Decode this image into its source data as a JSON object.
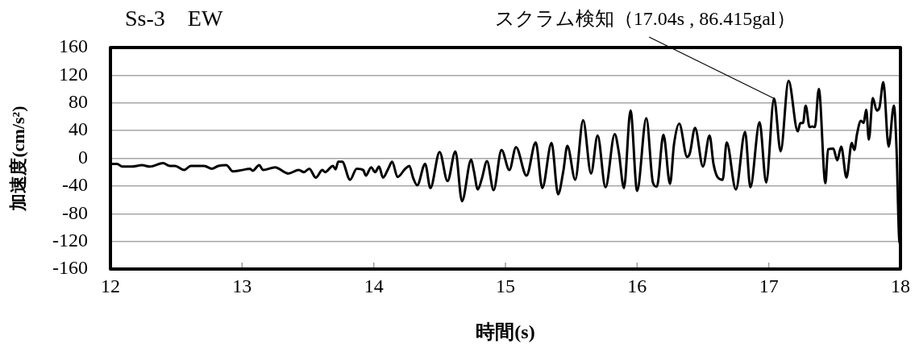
{
  "chart_data": {
    "type": "line",
    "title": "Ss-3　EW",
    "xlabel": "時間(s)",
    "ylabel": "加速度(cm/s²)",
    "x": [
      12.0,
      12.05,
      12.09,
      12.16,
      12.24,
      12.3,
      12.4,
      12.45,
      12.49,
      12.56,
      12.61,
      12.71,
      12.77,
      12.82,
      12.88,
      12.93,
      13.0,
      13.06,
      13.08,
      13.13,
      13.16,
      13.25,
      13.35,
      13.43,
      13.47,
      13.51,
      13.56,
      13.61,
      13.63,
      13.69,
      13.71,
      13.73,
      13.76,
      13.82,
      13.87,
      13.92,
      13.94,
      13.98,
      14.01,
      14.04,
      14.07,
      14.11,
      14.14,
      14.18,
      14.24,
      14.27,
      14.3,
      14.33,
      14.39,
      14.43,
      14.5,
      14.56,
      14.62,
      14.67,
      14.74,
      14.76,
      14.79,
      14.82,
      14.86,
      14.91,
      14.97,
      15.03,
      15.08,
      15.16,
      15.23,
      15.28,
      15.35,
      15.4,
      15.44,
      15.47,
      15.53,
      15.59,
      15.65,
      15.7,
      15.76,
      15.83,
      15.86,
      15.9,
      15.95,
      16.0,
      16.07,
      16.12,
      16.15,
      16.2,
      16.25,
      16.28,
      16.32,
      16.38,
      16.4,
      16.44,
      16.5,
      16.55,
      16.58,
      16.61,
      16.65,
      16.68,
      16.75,
      16.82,
      16.86,
      16.93,
      16.98,
      17.04,
      17.09,
      17.15,
      17.22,
      17.24,
      17.26,
      17.28,
      17.31,
      17.33,
      17.35,
      17.38,
      17.43,
      17.45,
      17.49,
      17.52,
      17.55,
      17.59,
      17.63,
      17.65,
      17.67,
      17.7,
      17.72,
      17.74,
      17.76,
      17.79,
      17.82,
      17.84,
      17.87,
      17.91,
      17.95,
      17.97,
      17.99,
      18.0
    ],
    "values": [
      -8,
      -8,
      -12,
      -12,
      -10,
      -12,
      -7,
      -11,
      -11,
      -17,
      -11,
      -11,
      -15,
      -11,
      -10,
      -19,
      -17,
      -15,
      -18,
      -10,
      -17,
      -13,
      -22,
      -17,
      -20,
      -15,
      -28,
      -17,
      -20,
      -11,
      -16,
      -5,
      -5,
      -31,
      -15,
      -17,
      -25,
      -13,
      -20,
      -12,
      -28,
      -15,
      -5,
      -27,
      -15,
      -11,
      -29,
      -39,
      -8,
      -43,
      9,
      -33,
      10,
      -62,
      -2,
      -18,
      -45,
      -30,
      -4,
      -46,
      12,
      -17,
      16,
      -25,
      23,
      -43,
      22,
      -52,
      -18,
      18,
      -31,
      55,
      -22,
      33,
      -42,
      35,
      10,
      -43,
      69,
      -47,
      58,
      -35,
      -41,
      34,
      -37,
      20,
      50,
      2,
      7,
      44,
      -12,
      33,
      -8,
      -27,
      -31,
      23,
      -45,
      38,
      -42,
      52,
      -35,
      86.415,
      10,
      112,
      39,
      51,
      51,
      76,
      45,
      46,
      45,
      100,
      -36,
      13,
      14,
      -3,
      17,
      -28,
      22,
      12,
      35,
      54,
      51,
      70,
      27,
      87,
      69,
      73,
      110,
      17,
      76,
      15,
      -116,
      -125
    ],
    "color": "#000000",
    "marker": "none",
    "xlim": [
      12,
      18
    ],
    "xticks": [
      12,
      13,
      14,
      15,
      16,
      17,
      18
    ],
    "ylim": [
      -160,
      160
    ],
    "yticks": [
      -160,
      -120,
      -80,
      -40,
      0,
      40,
      80,
      120,
      160
    ],
    "grid": "y",
    "annotations": [
      {
        "text": "スクラム検知（17.04s , 86.415gal）",
        "x": 17.04,
        "y": 86.415
      }
    ]
  }
}
